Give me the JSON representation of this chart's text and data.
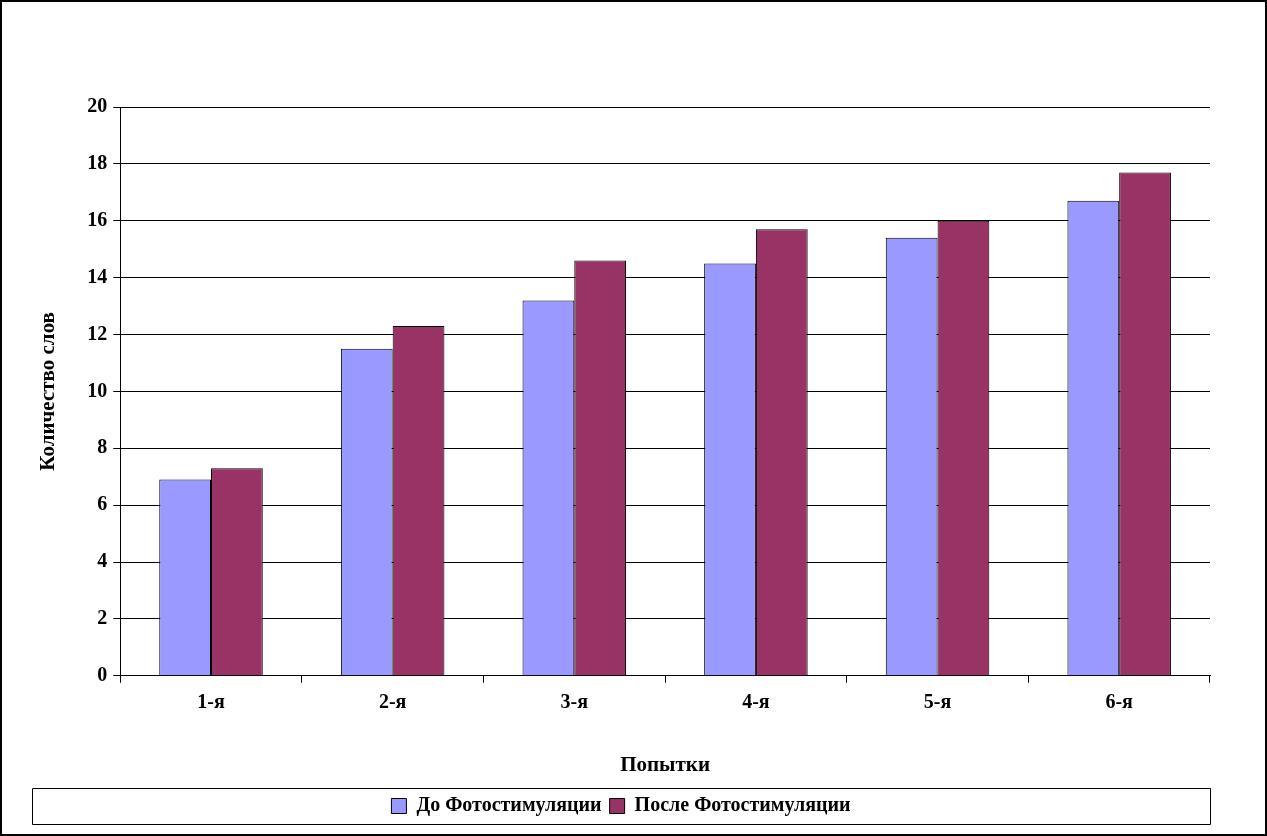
{
  "chart_data": {
    "type": "bar",
    "xlabel": "Попытки",
    "ylabel": "Количество слов",
    "categories": [
      "1-я",
      "2-я",
      "3-я",
      "4-я",
      "5-я",
      "6-я"
    ],
    "series": [
      {
        "name": "До Фотостимуляции",
        "color": "#9999ff",
        "values": [
          6.9,
          11.5,
          13.2,
          14.5,
          15.4,
          16.7
        ]
      },
      {
        "name": "После Фотостимуляции",
        "color": "#993366",
        "values": [
          7.3,
          12.3,
          14.6,
          15.7,
          16.0,
          17.7
        ]
      }
    ],
    "ylim": [
      0,
      20
    ],
    "yticks": [
      0,
      2,
      4,
      6,
      8,
      10,
      12,
      14,
      16,
      18,
      20
    ],
    "grid": "y",
    "legend": "bottom"
  }
}
